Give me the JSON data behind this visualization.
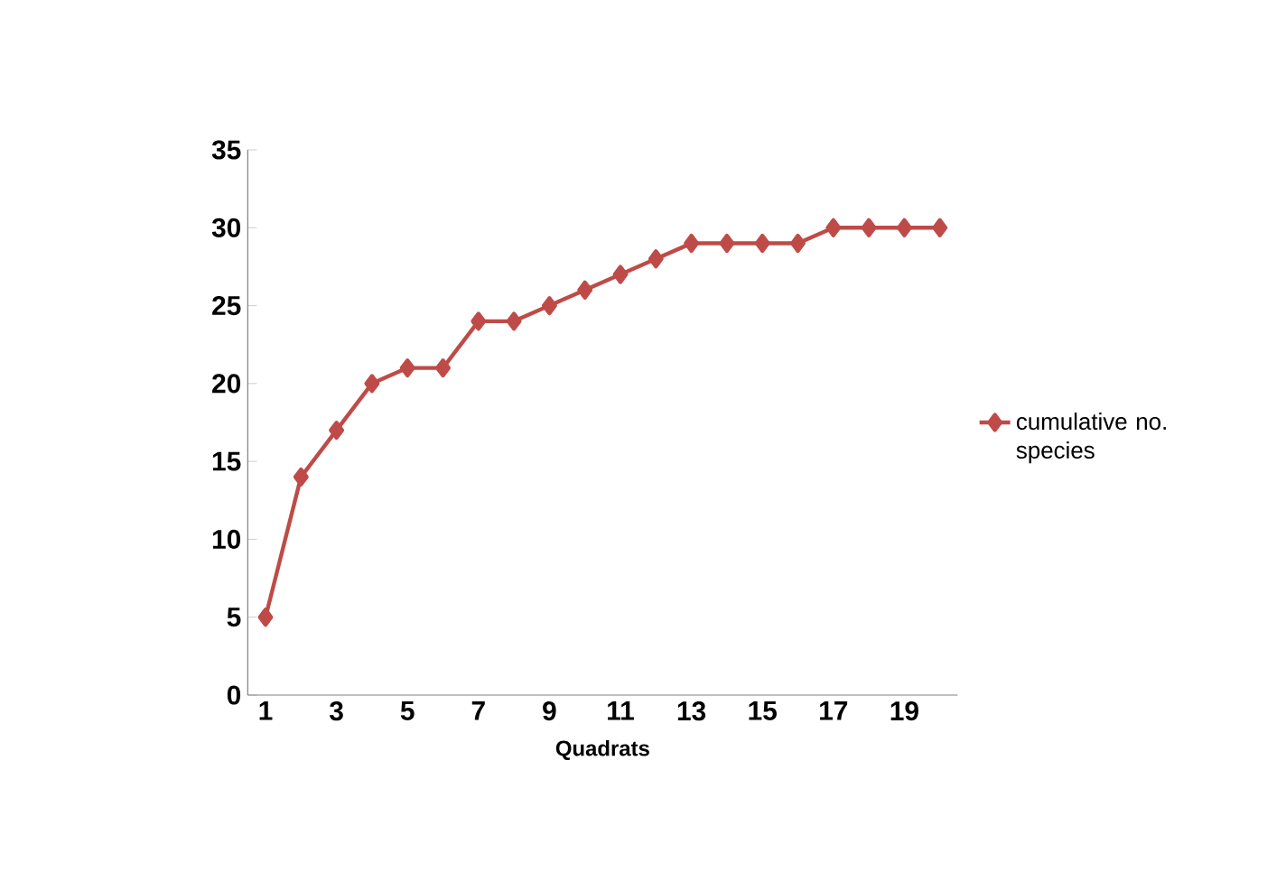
{
  "chart_data": {
    "type": "line",
    "xlabel": "Quadrats",
    "categories": [
      "1",
      null,
      "3",
      null,
      "5",
      null,
      "7",
      null,
      "9",
      null,
      "11",
      null,
      "13",
      null,
      "15",
      null,
      "17",
      null,
      "19",
      null
    ],
    "series": [
      {
        "name": "cumulative no. species",
        "color": "#be4b48",
        "values": [
          5,
          14,
          17,
          20,
          21,
          21,
          24,
          24,
          25,
          26,
          27,
          28,
          29,
          29,
          29,
          29,
          30,
          30,
          30,
          30
        ]
      }
    ],
    "ylim": [
      0,
      35
    ],
    "yticks": [
      0,
      5,
      10,
      15,
      20,
      25,
      30,
      35
    ],
    "grid": false,
    "legend": "right",
    "marker": "diamond",
    "line_style": "solid"
  }
}
